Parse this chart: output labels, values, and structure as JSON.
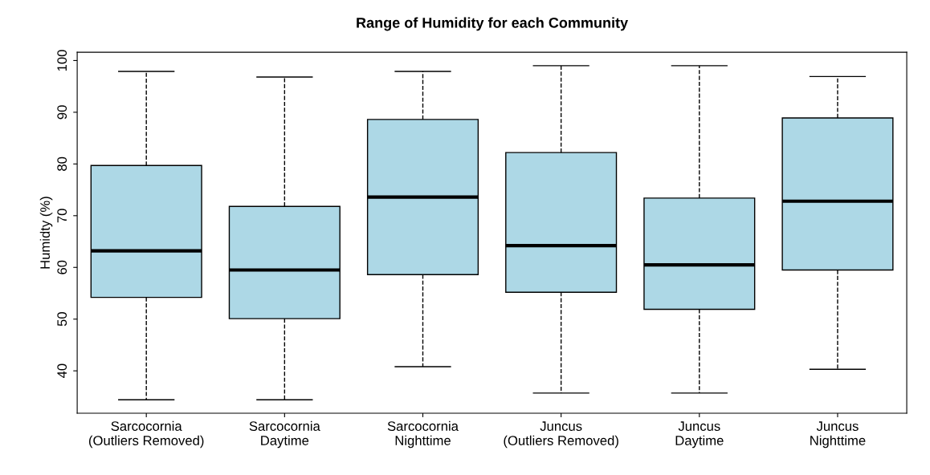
{
  "chart_data": {
    "type": "box",
    "title": "Range of Humidity for each Community",
    "ylabel": "Humidty (%)",
    "categories": [
      "Sarcocornia\n(Outliers Removed)",
      "Sarcocornia\nDaytime",
      "Sarcocornia\nNighttime",
      "Juncus\n(Outliers Removed)",
      "Juncus\nDaytime",
      "Juncus\nNighttime"
    ],
    "color": "#add8e6",
    "boxes": [
      {
        "low": 34.4,
        "q1": 54.2,
        "median": 63.2,
        "q3": 79.7,
        "high": 97.9
      },
      {
        "low": 34.4,
        "q1": 50.1,
        "median": 59.5,
        "q3": 71.8,
        "high": 96.8
      },
      {
        "low": 40.8,
        "q1": 58.6,
        "median": 73.6,
        "q3": 88.6,
        "high": 97.9
      },
      {
        "low": 35.7,
        "q1": 55.2,
        "median": 64.2,
        "q3": 82.2,
        "high": 99.0
      },
      {
        "low": 35.7,
        "q1": 51.9,
        "median": 60.5,
        "q3": 73.4,
        "high": 99.0
      },
      {
        "low": 40.3,
        "q1": 59.5,
        "median": 72.8,
        "q3": 88.9,
        "high": 96.9
      }
    ],
    "ylim": [
      31.8,
      101.6
    ],
    "yticks": [
      40,
      50,
      60,
      70,
      80,
      90,
      100
    ],
    "grid": false,
    "line_style": "dashed"
  }
}
